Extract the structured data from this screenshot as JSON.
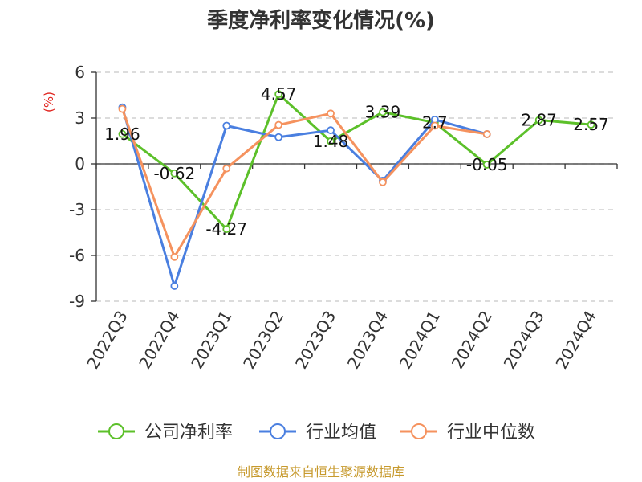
{
  "chart_data": {
    "type": "line",
    "title": "季度净利率变化情况(%)",
    "ylabel": "(%)",
    "categories": [
      "2022Q3",
      "2022Q4",
      "2023Q1",
      "2023Q2",
      "2023Q3",
      "2023Q4",
      "2024Q1",
      "2024Q2",
      "2024Q3",
      "2024Q4"
    ],
    "ylim": [
      -9,
      6
    ],
    "yticks": [
      6,
      3,
      0,
      -3,
      -6,
      -9
    ],
    "grid": true,
    "legend_position": "bottom",
    "series": [
      {
        "name": "公司净利率",
        "color": "#5cc02a",
        "values": [
          1.96,
          -0.62,
          -4.27,
          4.57,
          1.48,
          3.39,
          2.7,
          -0.05,
          2.87,
          2.57
        ],
        "labels": [
          "1.96",
          "-0.62",
          "-4.27",
          "4.57",
          "1.48",
          "3.39",
          "2.7",
          "-0.05",
          "2.87",
          "2.57"
        ]
      },
      {
        "name": "行业均值",
        "color": "#4a7fe0",
        "values": [
          3.7,
          -8.0,
          2.5,
          1.75,
          2.2,
          -1.1,
          2.9,
          1.95,
          null,
          null
        ]
      },
      {
        "name": "行业中位数",
        "color": "#f5925e",
        "values": [
          3.6,
          -6.1,
          -0.3,
          2.55,
          3.3,
          -1.2,
          2.5,
          1.95,
          null,
          null
        ]
      }
    ]
  },
  "footer": {
    "source": "制图数据来自恒生聚源数据库"
  }
}
